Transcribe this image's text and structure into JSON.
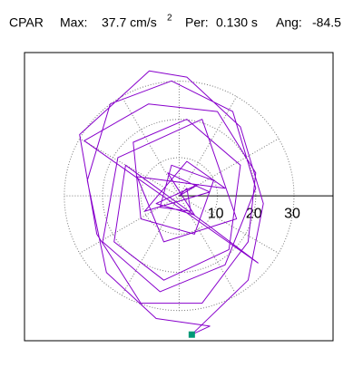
{
  "chart_data": {
    "type": "hodograph",
    "title": "CPAR",
    "stats": [
      {
        "label": "Max:",
        "text": "37.7 cm/s",
        "sup": "2"
      },
      {
        "label": "Per:",
        "text": "0.130 s"
      },
      {
        "label": "Ang:",
        "text": "-84.5"
      }
    ],
    "xlim": [
      -40.4,
      40.2
    ],
    "ylim": [
      -37.8,
      37.4
    ],
    "rings": [
      10,
      20,
      30
    ],
    "color": "#8800cc",
    "marker_color": "#009977",
    "marker": {
      "x": 3.3,
      "y": -36.2
    },
    "x": [
      0,
      5,
      -6,
      4,
      -3,
      8,
      -9,
      2,
      12,
      -11,
      -4,
      15,
      6,
      -16,
      -20,
      -5,
      12,
      20,
      14,
      -2,
      -18,
      -24,
      -19,
      -6,
      8,
      3.3,
      18,
      22,
      16,
      2,
      -7.8,
      -26,
      -21.5,
      -10,
      6,
      18,
      20,
      10,
      -8,
      -24.8,
      20.6,
      8,
      -14,
      -17,
      -4,
      13,
      16,
      2,
      -12,
      -10,
      4,
      9,
      -2,
      -5,
      3,
      2,
      0
    ],
    "y": [
      0,
      3,
      -2,
      -5,
      6,
      1,
      -4,
      9,
      2,
      5,
      -12,
      -6,
      20,
      10,
      -12,
      -25,
      -18,
      2,
      22,
      30,
      24,
      4,
      -20,
      -32,
      -34,
      -36.2,
      -22,
      -2,
      18,
      31,
      32.6,
      16,
      -10,
      -28,
      -28,
      -12,
      6,
      22,
      24,
      14.4,
      -17.5,
      -8,
      8,
      -12,
      -22,
      -14,
      8,
      20,
      14,
      -6,
      -10,
      4,
      8,
      -3,
      -4,
      2,
      0
    ]
  }
}
